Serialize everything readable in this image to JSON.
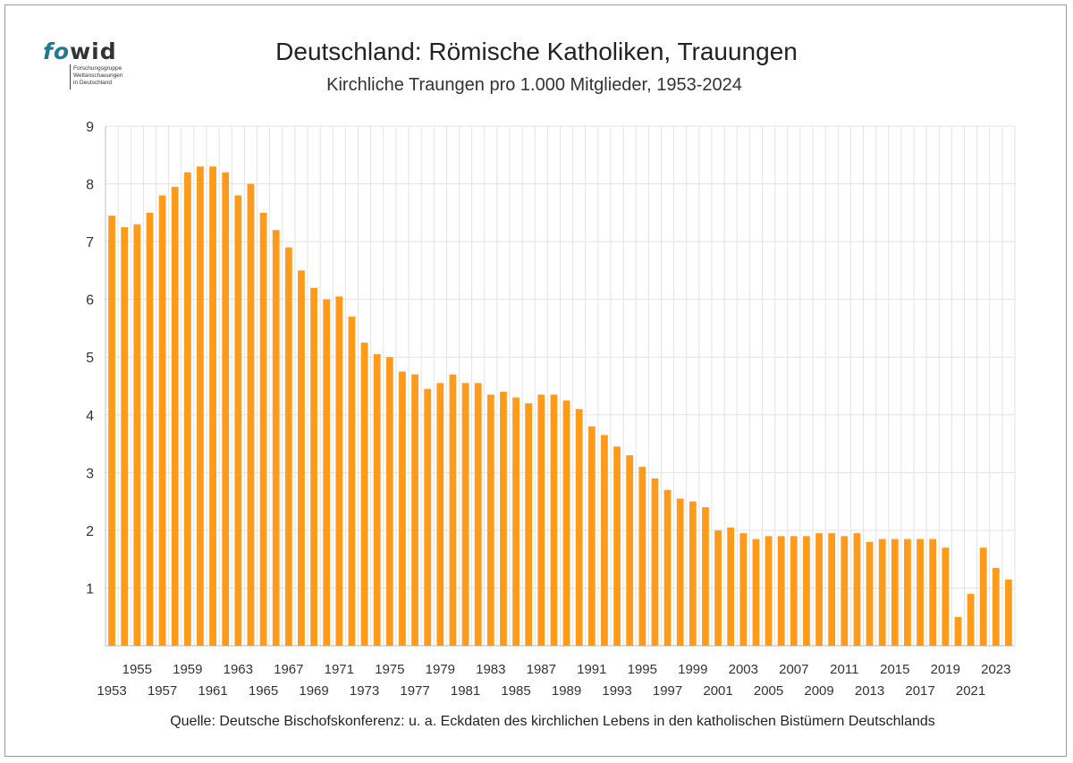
{
  "logo": {
    "word_fo": "fo",
    "word_wid": "wid",
    "subtitle": "Forschungsgruppe\nWeltanschauungen\nin Deutschland"
  },
  "title": "Deutschland: Römische Katholiken, Trauungen",
  "subtitle": "Kirchliche Traungen pro 1.000 Mitglieder, 1953-2024",
  "source": "Quelle: Deutsche Bischofskonferenz: u. a.  Eckdaten des kirchlichen Lebens in den katholischen Bistümern Deutschlands",
  "colors": {
    "bar": "#ff9a1a",
    "grid": "#e3e3e3",
    "axis": "#bdbdbd"
  },
  "chart_data": {
    "type": "bar",
    "x": [
      1953,
      1954,
      1955,
      1956,
      1957,
      1958,
      1959,
      1960,
      1961,
      1962,
      1963,
      1964,
      1965,
      1966,
      1967,
      1968,
      1969,
      1970,
      1971,
      1972,
      1973,
      1974,
      1975,
      1976,
      1977,
      1978,
      1979,
      1980,
      1981,
      1982,
      1983,
      1984,
      1985,
      1986,
      1987,
      1988,
      1989,
      1990,
      1991,
      1992,
      1993,
      1994,
      1995,
      1996,
      1997,
      1998,
      1999,
      2000,
      2001,
      2002,
      2003,
      2004,
      2005,
      2006,
      2007,
      2008,
      2009,
      2010,
      2011,
      2012,
      2013,
      2014,
      2015,
      2016,
      2017,
      2018,
      2019,
      2020,
      2021,
      2022,
      2023,
      2024
    ],
    "values": [
      7.45,
      7.25,
      7.3,
      7.5,
      7.8,
      7.95,
      8.2,
      8.3,
      8.3,
      8.2,
      7.8,
      8.0,
      7.5,
      7.2,
      6.9,
      6.5,
      6.2,
      6.0,
      6.05,
      5.7,
      5.25,
      5.05,
      5.0,
      4.75,
      4.7,
      4.45,
      4.55,
      4.7,
      4.55,
      4.55,
      4.35,
      4.4,
      4.3,
      4.2,
      4.35,
      4.35,
      4.25,
      4.1,
      3.8,
      3.65,
      3.45,
      3.3,
      3.1,
      2.9,
      2.7,
      2.55,
      2.5,
      2.4,
      2.0,
      2.05,
      1.95,
      1.85,
      1.9,
      1.9,
      1.9,
      1.9,
      1.95,
      1.95,
      1.9,
      1.95,
      1.8,
      1.85,
      1.85,
      1.85,
      1.85,
      1.85,
      1.7,
      0.5,
      0.9,
      1.7,
      1.35,
      1.15
    ],
    "ylim": [
      0,
      9
    ],
    "yticks": [
      1,
      2,
      3,
      4,
      5,
      6,
      7,
      8,
      9
    ],
    "xticks_top": [
      1955,
      1959,
      1963,
      1967,
      1971,
      1975,
      1979,
      1983,
      1987,
      1991,
      1995,
      1999,
      2003,
      2007,
      2011,
      2015,
      2019,
      2023
    ],
    "xticks_bottom": [
      1953,
      1957,
      1961,
      1965,
      1969,
      1973,
      1977,
      1981,
      1985,
      1989,
      1993,
      1997,
      2001,
      2005,
      2009,
      2013,
      2017,
      2021
    ],
    "grid": true,
    "legend": "none"
  }
}
